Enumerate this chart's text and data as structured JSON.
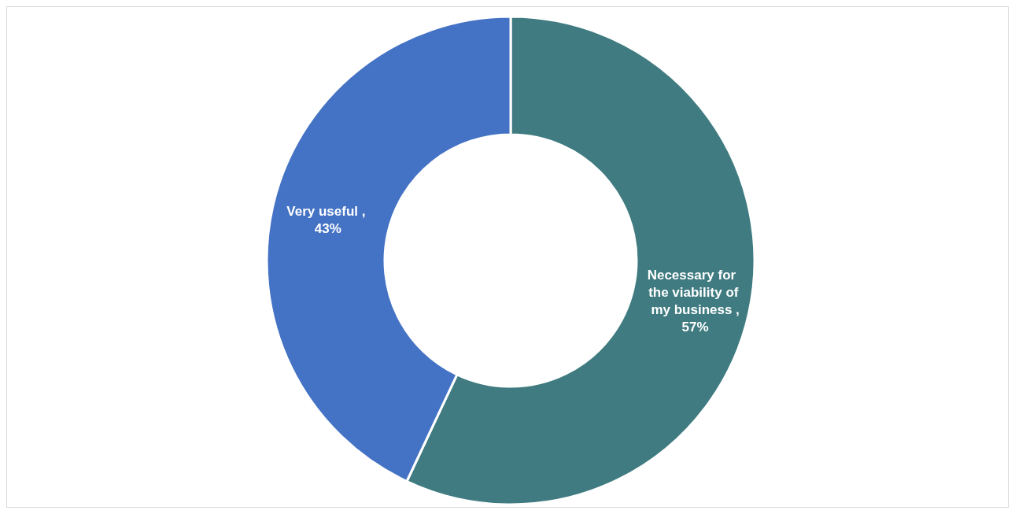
{
  "chart_data": {
    "type": "donut",
    "categories": [
      "Necessary for the viability of my business",
      "Very useful"
    ],
    "values": [
      57,
      43
    ],
    "colors": [
      "#3f7b80",
      "#4472c4"
    ],
    "value_labels": [
      ", 57%",
      ", 43%"
    ],
    "legend": false
  }
}
